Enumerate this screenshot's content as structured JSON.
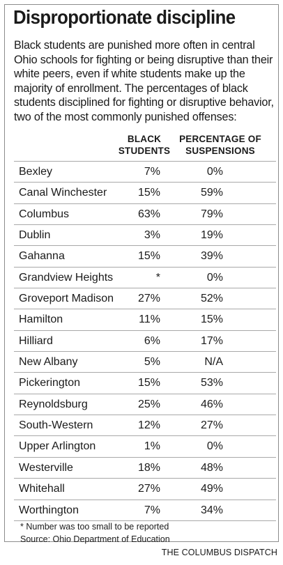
{
  "chart_data": {
    "type": "table",
    "title": "Disproportionate discipline",
    "subtitle": "Black students are punished more often in central Ohio schools for fighting or being disruptive than their white peers, even if white students make up the majority of enrollment. The percentages of black students disciplined for fighting or disruptive behavior, two of the most commonly punished offenses:",
    "columns": [
      {
        "line1": "BLACK",
        "line2": "STUDENTS"
      },
      {
        "line1": "PERCENTAGE OF",
        "line2": "SUSPENSIONS"
      }
    ],
    "rows": [
      {
        "district": "Bexley",
        "black_students": "7%",
        "suspensions": "0%"
      },
      {
        "district": "Canal Winchester",
        "black_students": "15%",
        "suspensions": "59%"
      },
      {
        "district": "Columbus",
        "black_students": "63%",
        "suspensions": "79%"
      },
      {
        "district": "Dublin",
        "black_students": "3%",
        "suspensions": "19%"
      },
      {
        "district": "Gahanna",
        "black_students": "15%",
        "suspensions": "39%"
      },
      {
        "district": "Grandview Heights",
        "black_students": "*",
        "suspensions": "0%"
      },
      {
        "district": "Groveport Madison",
        "black_students": "27%",
        "suspensions": "52%"
      },
      {
        "district": "Hamilton",
        "black_students": "11%",
        "suspensions": "15%"
      },
      {
        "district": "Hilliard",
        "black_students": "6%",
        "suspensions": "17%"
      },
      {
        "district": "New Albany",
        "black_students": "5%",
        "suspensions": "N/A"
      },
      {
        "district": "Pickerington",
        "black_students": "15%",
        "suspensions": "53%"
      },
      {
        "district": "Reynoldsburg",
        "black_students": "25%",
        "suspensions": "46%"
      },
      {
        "district": "South-Western",
        "black_students": "12%",
        "suspensions": "27%"
      },
      {
        "district": "Upper Arlington",
        "black_students": "1%",
        "suspensions": "0%"
      },
      {
        "district": "Westerville",
        "black_students": "18%",
        "suspensions": "48%"
      },
      {
        "district": "Whitehall",
        "black_students": "27%",
        "suspensions": "49%"
      },
      {
        "district": "Worthington",
        "black_students": "7%",
        "suspensions": "34%"
      }
    ],
    "footnote": "* Number was too small to be reported",
    "source": "Source: Ohio Department of Education",
    "credit": "THE COLUMBUS DISPATCH"
  }
}
